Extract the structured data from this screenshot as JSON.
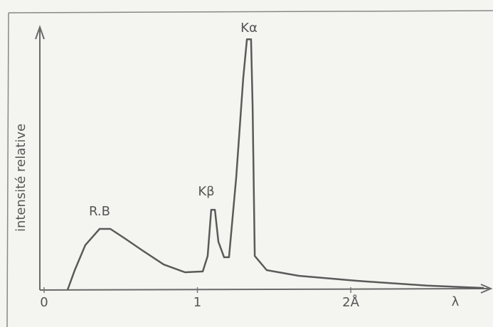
{
  "chart_data": {
    "type": "line",
    "y_label": "intensité relative",
    "x_label": "λ",
    "annotations": [
      "R.B",
      "Kβ",
      "Kα"
    ],
    "xlim": [
      -0.03,
      2.9
    ],
    "ylim": [
      0,
      100
    ],
    "xticks": [
      0,
      1,
      {
        "value": 2,
        "label": "2Å"
      }
    ],
    "grid": false,
    "color": "#5a5a5a",
    "x": [
      0.153,
      0.2,
      0.269,
      0.362,
      0.432,
      0.524,
      0.64,
      0.78,
      0.919,
      1.035,
      1.067,
      1.09,
      1.114,
      1.137,
      1.174,
      1.206,
      1.253,
      1.299,
      1.323,
      1.35,
      1.36,
      1.374,
      1.452,
      1.661,
      2.032,
      2.497,
      2.868
    ],
    "values": [
      0,
      7.7,
      17.4,
      23.7,
      23.7,
      20.1,
      15.4,
      9.9,
      6.9,
      7.2,
      13.2,
      31.1,
      31.1,
      18.7,
      12.7,
      12.7,
      43.5,
      82.1,
      97.2,
      97.2,
      71.1,
      13.2,
      7.7,
      5.5,
      3.6,
      1.7,
      0.8
    ]
  }
}
